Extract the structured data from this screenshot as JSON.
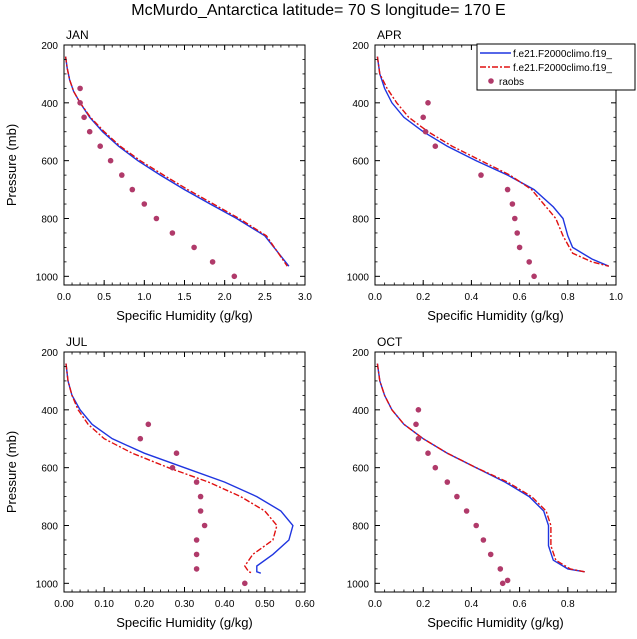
{
  "title": "McMurdo_Antarctica  latitude= 70 S longitude= 170 E",
  "legend": {
    "entries": [
      {
        "label": "f.e21.F2000climo.f19_",
        "color": "#1f35e0",
        "dash": "solid",
        "marker": "line"
      },
      {
        "label": "f.e21.F2000climo.f19_",
        "color": "#e01010",
        "dash": "dashed",
        "marker": "line"
      },
      {
        "label": "raobs",
        "color": "#b03a6a",
        "marker": "dot"
      }
    ]
  },
  "chart_data": [
    {
      "type": "line",
      "panel": "JAN",
      "xlabel": "Specific Humidity (g/kg)",
      "ylabel": "Pressure (mb)",
      "xlim": [
        0,
        3.0
      ],
      "ylim": [
        200,
        1030
      ],
      "y_reversed": true,
      "xticks": [
        0,
        0.5,
        1.0,
        1.5,
        2.0,
        2.5,
        3.0
      ],
      "xticklabels": [
        "0.0",
        "0.5",
        "1.0",
        "1.5",
        "2.0",
        "2.5",
        "3.0"
      ],
      "yticks": [
        200,
        400,
        600,
        800,
        1000
      ],
      "yticklabels": [
        "200",
        "400",
        "600",
        "800",
        "1000"
      ],
      "series": [
        {
          "color": "#1f35e0",
          "dash": "solid",
          "x": [
            0.02,
            0.04,
            0.07,
            0.12,
            0.2,
            0.32,
            0.48,
            0.68,
            0.92,
            1.2,
            1.5,
            1.82,
            2.15,
            2.5,
            2.8
          ],
          "y": [
            240,
            280,
            320,
            360,
            400,
            450,
            500,
            550,
            600,
            650,
            700,
            750,
            800,
            860,
            965
          ]
        },
        {
          "color": "#e01010",
          "dash": "dashed",
          "x": [
            0.02,
            0.04,
            0.07,
            0.12,
            0.2,
            0.33,
            0.5,
            0.7,
            0.95,
            1.24,
            1.54,
            1.86,
            2.18,
            2.52,
            2.78
          ],
          "y": [
            240,
            280,
            320,
            360,
            400,
            450,
            500,
            550,
            600,
            650,
            700,
            750,
            800,
            860,
            965
          ]
        },
        {
          "name": "raobs",
          "color": "#b03a6a",
          "type": "scatter",
          "x": [
            0.2,
            0.2,
            0.25,
            0.32,
            0.45,
            0.58,
            0.72,
            0.85,
            1.0,
            1.15,
            1.35,
            1.62,
            1.85,
            2.12
          ],
          "y": [
            350,
            400,
            450,
            500,
            550,
            600,
            650,
            700,
            750,
            800,
            850,
            900,
            950,
            1000
          ]
        }
      ]
    },
    {
      "type": "line",
      "panel": "APR",
      "xlabel": "Specific Humidity (g/kg)",
      "ylabel": "Pressure (mb)",
      "xlim": [
        0,
        1.0
      ],
      "ylim": [
        200,
        1030
      ],
      "y_reversed": true,
      "xticks": [
        0,
        0.2,
        0.4,
        0.6,
        0.8,
        1.0
      ],
      "xticklabels": [
        "0.0",
        "0.2",
        "0.4",
        "0.6",
        "0.8",
        "1.0"
      ],
      "yticks": [
        200,
        400,
        600,
        800,
        1000
      ],
      "yticklabels": [
        "200",
        "400",
        "600",
        "800",
        "1000"
      ],
      "series": [
        {
          "color": "#1f35e0",
          "dash": "solid",
          "x": [
            0.01,
            0.02,
            0.04,
            0.07,
            0.12,
            0.2,
            0.3,
            0.42,
            0.55,
            0.66,
            0.74,
            0.78,
            0.8,
            0.82,
            0.9,
            0.97
          ],
          "y": [
            240,
            300,
            350,
            400,
            450,
            500,
            550,
            600,
            650,
            700,
            760,
            800,
            860,
            900,
            940,
            965
          ]
        },
        {
          "color": "#e01010",
          "dash": "dashed",
          "x": [
            0.01,
            0.02,
            0.05,
            0.09,
            0.14,
            0.22,
            0.32,
            0.44,
            0.56,
            0.65,
            0.71,
            0.75,
            0.78,
            0.82,
            0.9,
            0.97
          ],
          "y": [
            240,
            300,
            350,
            400,
            450,
            500,
            550,
            600,
            650,
            700,
            760,
            800,
            860,
            920,
            950,
            965
          ]
        },
        {
          "name": "raobs",
          "color": "#b03a6a",
          "type": "scatter",
          "x": [
            0.22,
            0.2,
            0.21,
            0.25,
            0.44,
            0.55,
            0.57,
            0.58,
            0.59,
            0.6,
            0.64,
            0.66
          ],
          "y": [
            400,
            450,
            500,
            550,
            650,
            700,
            750,
            800,
            850,
            900,
            950,
            1000
          ]
        }
      ]
    },
    {
      "type": "line",
      "panel": "JUL",
      "xlabel": "Specific Humidity (g/kg)",
      "ylabel": "Pressure (mb)",
      "xlim": [
        0,
        0.6
      ],
      "ylim": [
        200,
        1030
      ],
      "y_reversed": true,
      "xticks": [
        0,
        0.1,
        0.2,
        0.3,
        0.4,
        0.5,
        0.6
      ],
      "xticklabels": [
        "0.00",
        "0.10",
        "0.20",
        "0.30",
        "0.40",
        "0.50",
        "0.60"
      ],
      "yticks": [
        200,
        400,
        600,
        800,
        1000
      ],
      "yticklabels": [
        "200",
        "400",
        "600",
        "800",
        "1000"
      ],
      "series": [
        {
          "color": "#1f35e0",
          "dash": "solid",
          "x": [
            0.005,
            0.01,
            0.02,
            0.04,
            0.07,
            0.12,
            0.2,
            0.3,
            0.4,
            0.48,
            0.54,
            0.57,
            0.56,
            0.52,
            0.48,
            0.48,
            0.49
          ],
          "y": [
            240,
            300,
            350,
            400,
            450,
            500,
            550,
            600,
            650,
            700,
            750,
            800,
            850,
            900,
            940,
            960,
            965
          ]
        },
        {
          "color": "#e01010",
          "dash": "dashed",
          "x": [
            0.005,
            0.01,
            0.02,
            0.035,
            0.06,
            0.1,
            0.17,
            0.26,
            0.36,
            0.44,
            0.5,
            0.53,
            0.52,
            0.47,
            0.45,
            0.46,
            0.47
          ],
          "y": [
            240,
            300,
            350,
            400,
            450,
            500,
            550,
            600,
            650,
            700,
            750,
            800,
            850,
            900,
            940,
            960,
            965
          ]
        },
        {
          "name": "raobs",
          "color": "#b03a6a",
          "type": "scatter",
          "x": [
            0.21,
            0.19,
            0.28,
            0.27,
            0.33,
            0.34,
            0.34,
            0.35,
            0.33,
            0.33,
            0.33,
            0.45
          ],
          "y": [
            450,
            500,
            550,
            600,
            650,
            700,
            750,
            800,
            850,
            900,
            950,
            1000
          ]
        }
      ]
    },
    {
      "type": "line",
      "panel": "OCT",
      "xlabel": "Specific Humidity (g/kg)",
      "ylabel": "Pressure (mb)",
      "xlim": [
        0,
        1.0
      ],
      "ylim": [
        200,
        1030
      ],
      "y_reversed": true,
      "xticks": [
        0,
        0.2,
        0.4,
        0.6,
        0.8
      ],
      "xticklabels": [
        "0.0",
        "0.2",
        "0.4",
        "0.6",
        "0.8"
      ],
      "yticks": [
        200,
        400,
        600,
        800,
        1000
      ],
      "yticklabels": [
        "200",
        "400",
        "600",
        "800",
        "1000"
      ],
      "series": [
        {
          "color": "#1f35e0",
          "dash": "solid",
          "x": [
            0.01,
            0.02,
            0.04,
            0.07,
            0.12,
            0.2,
            0.3,
            0.42,
            0.54,
            0.64,
            0.7,
            0.72,
            0.72,
            0.74,
            0.8,
            0.87
          ],
          "y": [
            240,
            300,
            350,
            400,
            450,
            500,
            550,
            600,
            650,
            700,
            750,
            800,
            870,
            920,
            950,
            960
          ]
        },
        {
          "color": "#e01010",
          "dash": "dashed",
          "x": [
            0.01,
            0.02,
            0.04,
            0.07,
            0.12,
            0.2,
            0.3,
            0.42,
            0.55,
            0.65,
            0.71,
            0.73,
            0.73,
            0.75,
            0.81,
            0.87
          ],
          "y": [
            240,
            300,
            350,
            400,
            450,
            500,
            550,
            600,
            650,
            700,
            750,
            800,
            870,
            920,
            950,
            960
          ]
        },
        {
          "name": "raobs",
          "color": "#b03a6a",
          "type": "scatter",
          "x": [
            0.18,
            0.17,
            0.18,
            0.22,
            0.25,
            0.3,
            0.34,
            0.38,
            0.42,
            0.45,
            0.48,
            0.52,
            0.55,
            0.53
          ],
          "y": [
            400,
            450,
            500,
            550,
            600,
            650,
            700,
            750,
            800,
            850,
            900,
            950,
            990,
            1000
          ]
        }
      ]
    }
  ]
}
